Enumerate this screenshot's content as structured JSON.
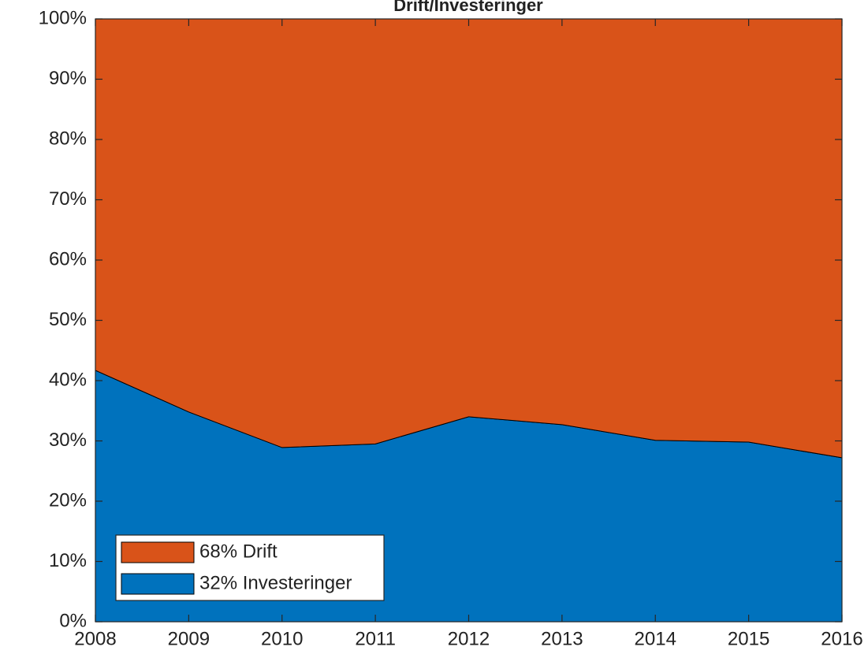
{
  "chart_data": {
    "type": "stacked-area",
    "title": "Drift/Investeringer",
    "x": [
      2008,
      2009,
      2010,
      2011,
      2012,
      2013,
      2014,
      2015,
      2016
    ],
    "series": [
      {
        "name": "32% Investeringer",
        "color": "#0072bd",
        "values": [
          41.7,
          34.8,
          28.9,
          29.5,
          34.0,
          32.7,
          30.1,
          29.8,
          27.2
        ]
      },
      {
        "name": "68% Drift",
        "color": "#d95319",
        "values": [
          58.3,
          65.2,
          71.1,
          70.5,
          66.0,
          67.3,
          69.9,
          70.2,
          72.8
        ]
      }
    ],
    "xlim": [
      2008,
      2016
    ],
    "xticks": [
      2008,
      2009,
      2010,
      2011,
      2012,
      2013,
      2014,
      2015,
      2016
    ],
    "ylim": [
      0,
      100
    ],
    "yticks": [
      {
        "value": 0,
        "label": "0%"
      },
      {
        "value": 10,
        "label": "10%"
      },
      {
        "value": 20,
        "label": "20%"
      },
      {
        "value": 30,
        "label": "30%"
      },
      {
        "value": 40,
        "label": "40%"
      },
      {
        "value": 50,
        "label": "50%"
      },
      {
        "value": 60,
        "label": "60%"
      },
      {
        "value": 70,
        "label": "70%"
      },
      {
        "value": 80,
        "label": "80%"
      },
      {
        "value": 90,
        "label": "90%"
      },
      {
        "value": 100,
        "label": "100%"
      }
    ],
    "grid": false,
    "legend": "lower left"
  }
}
